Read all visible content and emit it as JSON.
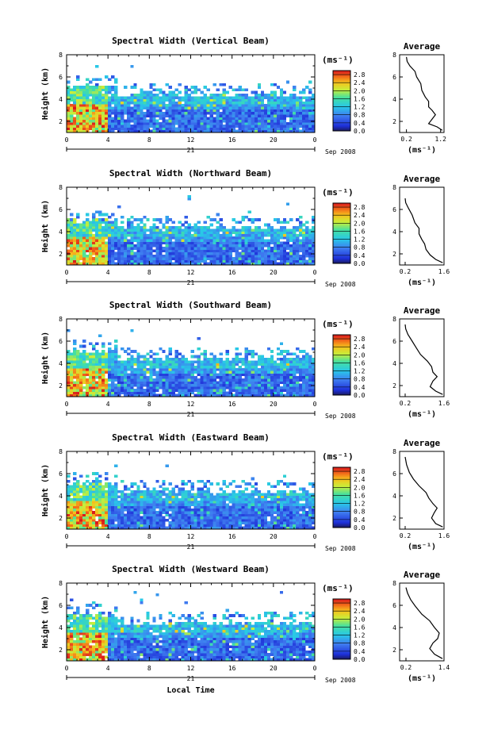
{
  "chart_data": [
    {
      "type": "heatmap",
      "title": "Spectral Width (Vertical Beam)",
      "ylabel": "Height (km)",
      "xlabel": "",
      "x_ticks": [
        "0",
        "4",
        "8",
        "12",
        "16",
        "20",
        "0"
      ],
      "y_ticks": [
        "2",
        "4",
        "6",
        "8"
      ],
      "xlim": [
        0,
        24
      ],
      "ylim": [
        1,
        8
      ],
      "day_label": "21",
      "date_label": "Sep 2008",
      "colorbar": {
        "unit_label": "(ms⁻¹)",
        "ticks": [
          "0.0",
          "0.4",
          "0.8",
          "1.2",
          "1.6",
          "2.0",
          "2.4",
          "2.8"
        ],
        "range": [
          0,
          3
        ]
      },
      "profile": {
        "title": "Average",
        "xlabel": "(ms⁻¹)",
        "x_ticks": [
          "0.2",
          "1.2"
        ],
        "y_ticks": [
          "2",
          "4",
          "6",
          "8"
        ],
        "xlim": [
          0.0,
          1.3
        ],
        "ylim": [
          1,
          8
        ],
        "points": [
          [
            1.25,
            1.2
          ],
          [
            1.1,
            1.5
          ],
          [
            0.85,
            1.8
          ],
          [
            0.95,
            2.2
          ],
          [
            1.05,
            2.6
          ],
          [
            0.95,
            3.0
          ],
          [
            0.85,
            3.3
          ],
          [
            0.85,
            3.8
          ],
          [
            0.75,
            4.2
          ],
          [
            0.65,
            4.8
          ],
          [
            0.62,
            5.4
          ],
          [
            0.5,
            6.0
          ],
          [
            0.45,
            6.5
          ],
          [
            0.3,
            7.0
          ],
          [
            0.22,
            7.4
          ],
          [
            0.2,
            7.8
          ]
        ]
      }
    },
    {
      "type": "heatmap",
      "title": "Spectral Width (Northward Beam)",
      "ylabel": "Height (km)",
      "xlabel": "",
      "x_ticks": [
        "0",
        "4",
        "8",
        "12",
        "16",
        "20",
        "0"
      ],
      "y_ticks": [
        "2",
        "4",
        "6",
        "8"
      ],
      "xlim": [
        0,
        24
      ],
      "ylim": [
        1,
        8
      ],
      "day_label": "21",
      "date_label": "Sep 2008",
      "colorbar": {
        "unit_label": "(ms⁻¹)",
        "ticks": [
          "0.0",
          "0.4",
          "0.8",
          "1.2",
          "1.6",
          "2.0",
          "2.4",
          "2.8"
        ],
        "range": [
          0,
          3
        ]
      },
      "profile": {
        "title": "Average",
        "xlabel": "(ms⁻¹)",
        "x_ticks": [
          "0.2",
          "1.6"
        ],
        "y_ticks": [
          "2",
          "4",
          "6",
          "8"
        ],
        "xlim": [
          0.0,
          1.6
        ],
        "ylim": [
          1,
          8
        ],
        "points": [
          [
            1.55,
            1.2
          ],
          [
            1.3,
            1.5
          ],
          [
            1.1,
            1.9
          ],
          [
            0.95,
            2.4
          ],
          [
            0.9,
            2.9
          ],
          [
            0.8,
            3.3
          ],
          [
            0.7,
            3.8
          ],
          [
            0.7,
            4.3
          ],
          [
            0.55,
            4.8
          ],
          [
            0.45,
            5.5
          ],
          [
            0.32,
            6.1
          ],
          [
            0.22,
            6.6
          ],
          [
            0.2,
            7.0
          ]
        ]
      }
    },
    {
      "type": "heatmap",
      "title": "Spectral Width (Southward Beam)",
      "ylabel": "Height (km)",
      "xlabel": "",
      "x_ticks": [
        "0",
        "4",
        "8",
        "12",
        "16",
        "20",
        "0"
      ],
      "y_ticks": [
        "2",
        "4",
        "6",
        "8"
      ],
      "xlim": [
        0,
        24
      ],
      "ylim": [
        1,
        8
      ],
      "day_label": "21",
      "date_label": "Sep 2008",
      "colorbar": {
        "unit_label": "(ms⁻¹)",
        "ticks": [
          "0.0",
          "0.4",
          "0.8",
          "1.2",
          "1.6",
          "2.0",
          "2.4",
          "2.8"
        ],
        "range": [
          0,
          3
        ]
      },
      "profile": {
        "title": "Average",
        "xlabel": "(ms⁻¹)",
        "x_ticks": [
          "0.2",
          "1.6"
        ],
        "y_ticks": [
          "2",
          "4",
          "6",
          "8"
        ],
        "xlim": [
          0.0,
          1.6
        ],
        "ylim": [
          1,
          8
        ],
        "points": [
          [
            1.55,
            1.2
          ],
          [
            1.3,
            1.5
          ],
          [
            1.1,
            1.9
          ],
          [
            1.2,
            2.4
          ],
          [
            1.35,
            2.8
          ],
          [
            1.2,
            3.2
          ],
          [
            1.15,
            3.7
          ],
          [
            1.0,
            4.2
          ],
          [
            0.75,
            4.8
          ],
          [
            0.6,
            5.4
          ],
          [
            0.45,
            6.0
          ],
          [
            0.3,
            6.6
          ],
          [
            0.22,
            7.1
          ],
          [
            0.2,
            7.5
          ]
        ]
      }
    },
    {
      "type": "heatmap",
      "title": "Spectral Width (Eastward Beam)",
      "ylabel": "Height (km)",
      "xlabel": "",
      "x_ticks": [
        "0",
        "4",
        "8",
        "12",
        "16",
        "20",
        "0"
      ],
      "y_ticks": [
        "2",
        "4",
        "6",
        "8"
      ],
      "xlim": [
        0,
        24
      ],
      "ylim": [
        1,
        8
      ],
      "day_label": "21",
      "date_label": "Sep 2008",
      "colorbar": {
        "unit_label": "(ms⁻¹)",
        "ticks": [
          "0.0",
          "0.4",
          "0.8",
          "1.2",
          "1.6",
          "2.0",
          "2.4",
          "2.8"
        ],
        "range": [
          0,
          3
        ]
      },
      "profile": {
        "title": "Average",
        "xlabel": "(ms⁻¹)",
        "x_ticks": [
          "0.2",
          "1.6"
        ],
        "y_ticks": [
          "2",
          "4",
          "6",
          "8"
        ],
        "xlim": [
          0.0,
          1.6
        ],
        "ylim": [
          1,
          8
        ],
        "points": [
          [
            1.55,
            1.2
          ],
          [
            1.3,
            1.5
          ],
          [
            1.15,
            2.0
          ],
          [
            1.25,
            2.5
          ],
          [
            1.35,
            2.9
          ],
          [
            1.2,
            3.3
          ],
          [
            1.05,
            3.8
          ],
          [
            0.95,
            4.3
          ],
          [
            0.7,
            4.9
          ],
          [
            0.5,
            5.5
          ],
          [
            0.35,
            6.1
          ],
          [
            0.25,
            6.8
          ],
          [
            0.2,
            7.5
          ]
        ]
      }
    },
    {
      "type": "heatmap",
      "title": "Spectral Width (Westward Beam)",
      "ylabel": "Height (km)",
      "xlabel": "Local Time",
      "x_ticks": [
        "0",
        "4",
        "8",
        "12",
        "16",
        "20",
        "0"
      ],
      "y_ticks": [
        "2",
        "4",
        "6",
        "8"
      ],
      "xlim": [
        0,
        24
      ],
      "ylim": [
        1,
        8
      ],
      "day_label": "21",
      "date_label": "Sep 2008",
      "colorbar": {
        "unit_label": "(ms⁻¹)",
        "ticks": [
          "0.0",
          "0.4",
          "0.8",
          "1.2",
          "1.6",
          "2.0",
          "2.4",
          "2.8"
        ],
        "range": [
          0,
          3
        ]
      },
      "profile": {
        "title": "Average",
        "xlabel": "(ms⁻¹)",
        "x_ticks": [
          "0.2",
          "1.4"
        ],
        "y_ticks": [
          "2",
          "4",
          "6",
          "8"
        ],
        "xlim": [
          0.0,
          1.4
        ],
        "ylim": [
          1,
          8
        ],
        "points": [
          [
            1.35,
            1.2
          ],
          [
            1.1,
            1.6
          ],
          [
            0.95,
            2.1
          ],
          [
            1.05,
            2.6
          ],
          [
            1.2,
            3.0
          ],
          [
            1.25,
            3.5
          ],
          [
            1.1,
            4.0
          ],
          [
            0.95,
            4.6
          ],
          [
            0.7,
            5.2
          ],
          [
            0.5,
            5.9
          ],
          [
            0.35,
            6.5
          ],
          [
            0.25,
            7.1
          ],
          [
            0.2,
            7.6
          ]
        ]
      }
    }
  ]
}
